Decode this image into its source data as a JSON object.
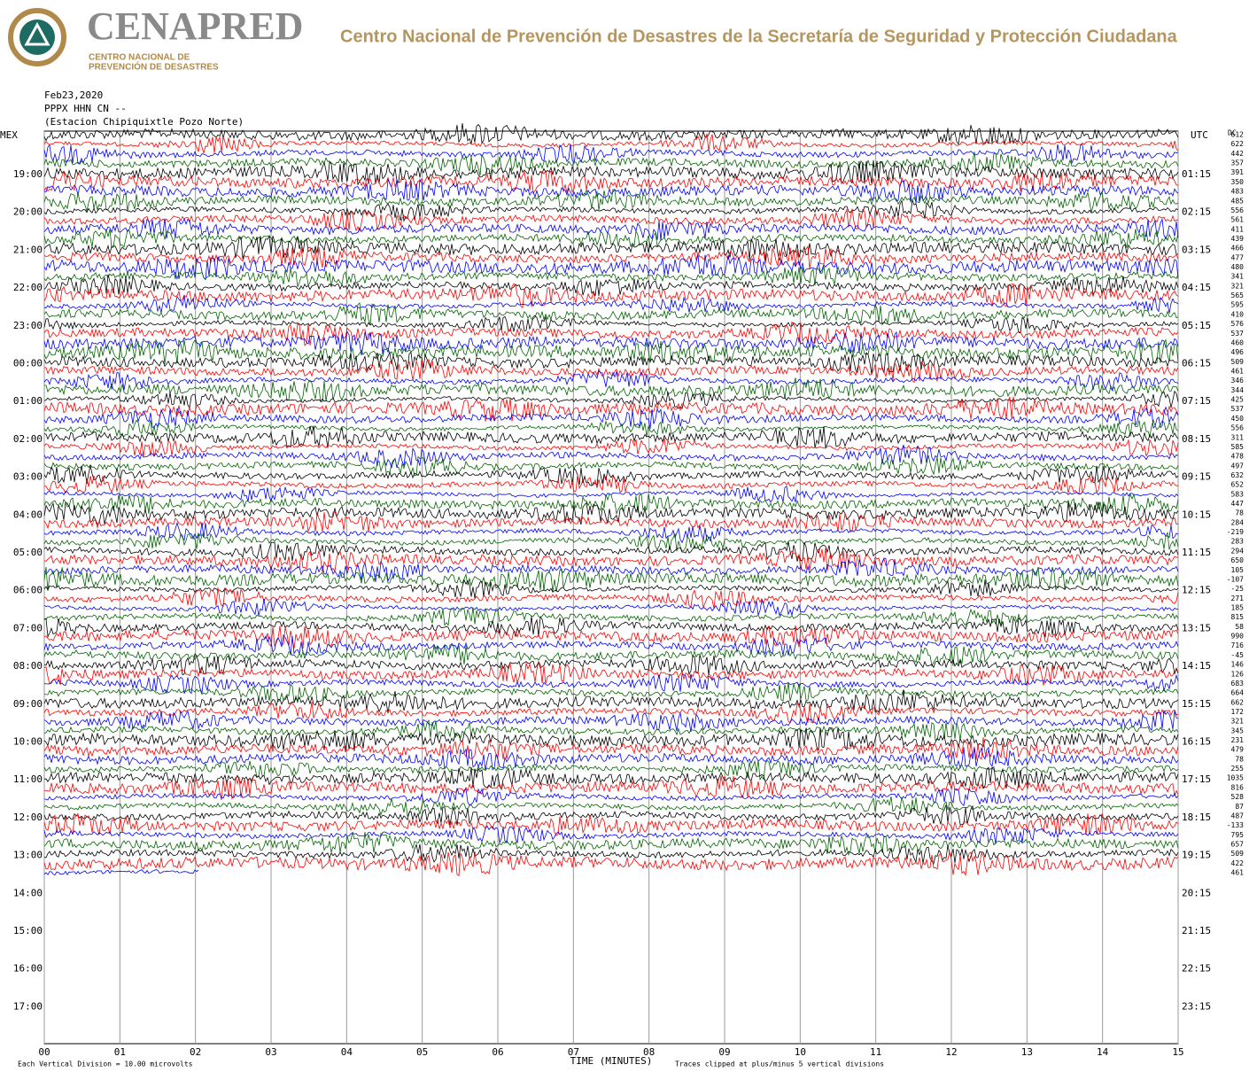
{
  "header": {
    "brand": "CENAPRED",
    "brand_sub_1": "CENTRO NACIONAL DE",
    "brand_sub_2": "PREVENCIÓN DE DESASTRES",
    "title": "Centro Nacional de Prevención de Desastres de la Secretaría de Seguridad y Protección Ciudadana"
  },
  "plot": {
    "date": "Feb23,2020",
    "station_code": "PPPX HHN CN --",
    "station_name": "(Estacion Chipiquixtle Pozo Norte)",
    "left_label": "MEX",
    "right_label": "UTC",
    "dc_label": "DC",
    "left_times": [
      "19:00",
      "20:00",
      "21:00",
      "22:00",
      "23:00",
      "00:00",
      "01:00",
      "02:00",
      "03:00",
      "04:00",
      "05:00",
      "06:00",
      "07:00",
      "08:00",
      "09:00",
      "10:00",
      "11:00",
      "12:00",
      "13:00",
      "14:00",
      "15:00",
      "16:00",
      "17:00"
    ],
    "right_times": [
      "01:15",
      "02:15",
      "03:15",
      "04:15",
      "05:15",
      "06:15",
      "07:15",
      "08:15",
      "09:15",
      "10:15",
      "11:15",
      "12:15",
      "13:15",
      "14:15",
      "15:15",
      "16:15",
      "17:15",
      "18:15",
      "19:15",
      "20:15",
      "21:15",
      "22:15",
      "23:15"
    ],
    "dc_offsets": [
      612,
      622,
      442,
      357,
      391,
      350,
      483,
      485,
      556,
      561,
      411,
      439,
      466,
      477,
      480,
      341,
      321,
      565,
      595,
      410,
      576,
      537,
      460,
      496,
      509,
      461,
      346,
      344,
      425,
      537,
      450,
      556,
      311,
      585,
      478,
      497,
      632,
      652,
      583,
      447,
      78,
      284,
      -219,
      283,
      294,
      650,
      105,
      -107,
      -25,
      271,
      185,
      815,
      58,
      990,
      716,
      -45,
      146,
      126,
      683,
      664,
      662,
      172,
      321,
      345,
      231,
      479,
      78,
      255,
      1035,
      816,
      528,
      87,
      487,
      -133,
      795,
      657,
      509,
      422,
      461
    ],
    "x_ticks": [
      "00",
      "01",
      "02",
      "03",
      "04",
      "05",
      "06",
      "07",
      "08",
      "09",
      "10",
      "11",
      "12",
      "13",
      "14",
      "15"
    ],
    "x_label": "TIME (MINUTES)",
    "footer_left": "Each Vertical Division =   10.00 microvolts",
    "footer_right": "Traces clipped at plus/minus 5 vertical divisions",
    "trace_colors": [
      "#000000",
      "#ff0000",
      "#0000ff",
      "#006400"
    ]
  }
}
